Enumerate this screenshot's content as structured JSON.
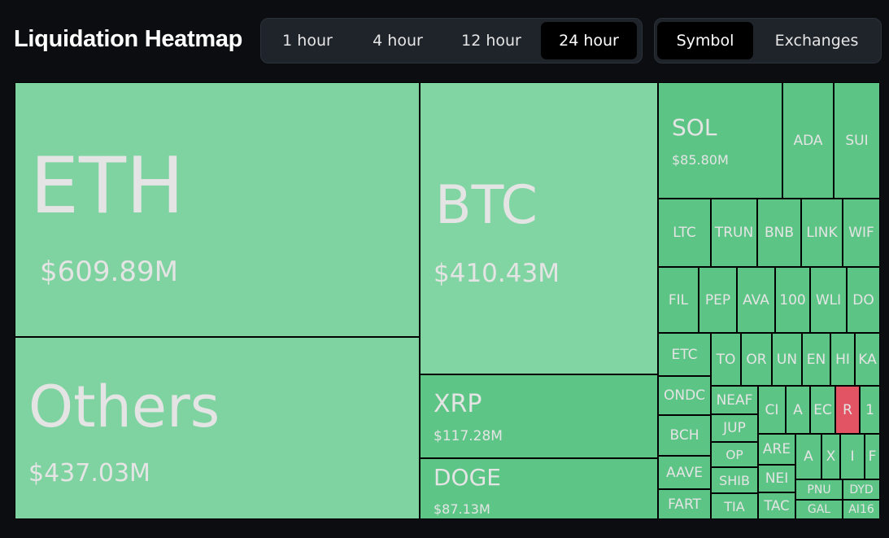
{
  "header": {
    "title": "Liquidation Heatmap",
    "time_tabs": [
      "1 hour",
      "4 hour",
      "12 hour",
      "24 hour"
    ],
    "active_time_tab": 3,
    "view_tabs": [
      "Symbol",
      "Exchanges"
    ],
    "active_view_tab": 0
  },
  "tiles": [
    {
      "label": "ETH",
      "value": "$609.89M",
      "color": "#7fd3a0"
    },
    {
      "label": "Others",
      "value": "$437.03M",
      "color": "#7fd3a0"
    },
    {
      "label": "BTC",
      "value": "$410.43M",
      "color": "#81d5a2"
    },
    {
      "label": "XRP",
      "value": "$117.28M",
      "color": "#5dc687"
    },
    {
      "label": "DOGE",
      "value": "$87.13M",
      "color": "#5dc687"
    },
    {
      "label": "SOL",
      "value": "$85.80M",
      "color": "#5cc585"
    },
    {
      "label": "ADA",
      "color": "#5cc585"
    },
    {
      "label": "SUI",
      "color": "#5cc585"
    },
    {
      "label": "LTC",
      "color": "#5cc585"
    },
    {
      "label": "TRUN",
      "color": "#5cc585"
    },
    {
      "label": "BNB",
      "color": "#5cc585"
    },
    {
      "label": "LINK",
      "color": "#5cc585"
    },
    {
      "label": "WIF",
      "color": "#5cc585"
    },
    {
      "label": "FIL",
      "color": "#5cc585"
    },
    {
      "label": "PEP",
      "color": "#5cc585"
    },
    {
      "label": "AVA",
      "color": "#5cc585"
    },
    {
      "label": "100",
      "color": "#5cc585"
    },
    {
      "label": "WLI",
      "color": "#5cc585"
    },
    {
      "label": "DO",
      "color": "#5cc585"
    },
    {
      "label": "ETC",
      "color": "#5cc585"
    },
    {
      "label": "ONDC",
      "color": "#5cc585"
    },
    {
      "label": "BCH",
      "color": "#5cc585"
    },
    {
      "label": "AAVE",
      "color": "#5cc585"
    },
    {
      "label": "FART",
      "color": "#5cc585"
    },
    {
      "label": "TO",
      "color": "#5cc585"
    },
    {
      "label": "OR",
      "color": "#5cc585"
    },
    {
      "label": "UN",
      "color": "#5cc585"
    },
    {
      "label": "EN",
      "color": "#5cc585"
    },
    {
      "label": "HI",
      "color": "#5cc585"
    },
    {
      "label": "KA",
      "color": "#5cc585"
    },
    {
      "label": "NEAF",
      "color": "#5cc585"
    },
    {
      "label": "JUP",
      "color": "#5cc585"
    },
    {
      "label": "OP",
      "color": "#5cc585"
    },
    {
      "label": "SHIB",
      "color": "#5cc585"
    },
    {
      "label": "TIA",
      "color": "#5cc585"
    },
    {
      "label": "CI",
      "color": "#5cc585"
    },
    {
      "label": "A",
      "color": "#5cc585"
    },
    {
      "label": "EC",
      "color": "#5cc585"
    },
    {
      "label": "R",
      "color": "#e25463"
    },
    {
      "label": "1",
      "color": "#5cc585"
    },
    {
      "label": "ARE",
      "color": "#5cc585"
    },
    {
      "label": "NEI",
      "color": "#5cc585"
    },
    {
      "label": "TAC",
      "color": "#5cc585"
    },
    {
      "label": "A",
      "color": "#5cc585"
    },
    {
      "label": "X",
      "color": "#5cc585"
    },
    {
      "label": "I",
      "color": "#5cc585"
    },
    {
      "label": "F",
      "color": "#5cc585"
    },
    {
      "label": "PNU",
      "color": "#5cc585"
    },
    {
      "label": "DYD",
      "color": "#5cc585"
    },
    {
      "label": "GAL",
      "color": "#5cc585"
    },
    {
      "label": "AI16",
      "color": "#5cc585"
    }
  ]
}
